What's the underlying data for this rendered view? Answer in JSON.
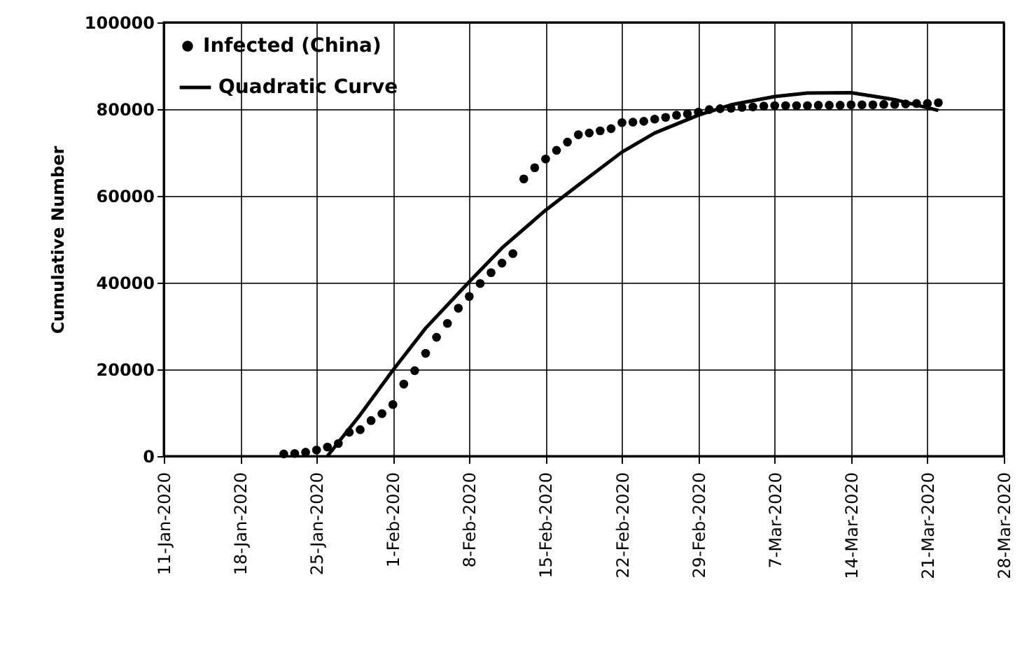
{
  "chart_data": {
    "type": "scatter",
    "ylabel": "Cumulative Number",
    "xlim": [
      "2020-01-11",
      "2020-03-28"
    ],
    "xticks": [
      {
        "value": "2020-01-11",
        "label": "11-Jan-2020"
      },
      {
        "value": "2020-01-18",
        "label": "18-Jan-2020"
      },
      {
        "value": "2020-01-25",
        "label": "25-Jan-2020"
      },
      {
        "value": "2020-02-01",
        "label": "1-Feb-2020"
      },
      {
        "value": "2020-02-08",
        "label": "8-Feb-2020"
      },
      {
        "value": "2020-02-15",
        "label": "15-Feb-2020"
      },
      {
        "value": "2020-02-22",
        "label": "22-Feb-2020"
      },
      {
        "value": "2020-02-29",
        "label": "29-Feb-2020"
      },
      {
        "value": "2020-03-07",
        "label": "7-Mar-2020"
      },
      {
        "value": "2020-03-14",
        "label": "14-Mar-2020"
      },
      {
        "value": "2020-03-21",
        "label": "21-Mar-2020"
      },
      {
        "value": "2020-03-28",
        "label": "28-Mar-2020"
      }
    ],
    "ylim": [
      0,
      100000
    ],
    "yticks": [
      0,
      20000,
      40000,
      60000,
      80000,
      100000
    ],
    "grid": true,
    "legend": "top left",
    "series": [
      {
        "name": "Infected (China)",
        "marker": "circle",
        "color": "#000000",
        "x": [
          "2020-01-22",
          "2020-01-23",
          "2020-01-24",
          "2020-01-25",
          "2020-01-26",
          "2020-01-27",
          "2020-01-28",
          "2020-01-29",
          "2020-01-30",
          "2020-01-31",
          "2020-02-01",
          "2020-02-02",
          "2020-02-03",
          "2020-02-04",
          "2020-02-05",
          "2020-02-06",
          "2020-02-07",
          "2020-02-08",
          "2020-02-09",
          "2020-02-10",
          "2020-02-11",
          "2020-02-12",
          "2020-02-13",
          "2020-02-14",
          "2020-02-15",
          "2020-02-16",
          "2020-02-17",
          "2020-02-18",
          "2020-02-19",
          "2020-02-20",
          "2020-02-21",
          "2020-02-22",
          "2020-02-23",
          "2020-02-24",
          "2020-02-25",
          "2020-02-26",
          "2020-02-27",
          "2020-02-28",
          "2020-02-29",
          "2020-03-01",
          "2020-03-02",
          "2020-03-03",
          "2020-03-04",
          "2020-03-05",
          "2020-03-06",
          "2020-03-07",
          "2020-03-08",
          "2020-03-09",
          "2020-03-10",
          "2020-03-11",
          "2020-03-12",
          "2020-03-13",
          "2020-03-14",
          "2020-03-15",
          "2020-03-16",
          "2020-03-17",
          "2020-03-18",
          "2020-03-19",
          "2020-03-20",
          "2020-03-21",
          "2020-03-22"
        ],
        "values": [
          500,
          600,
          900,
          1400,
          2100,
          2900,
          5500,
          6100,
          8200,
          9800,
          11900,
          16600,
          19700,
          23700,
          27400,
          30600,
          34100,
          36800,
          39800,
          42300,
          44500,
          46700,
          63900,
          66500,
          68500,
          70500,
          72400,
          74100,
          74500,
          75000,
          75500,
          76900,
          77000,
          77200,
          77700,
          78100,
          78600,
          78900,
          79300,
          79900,
          80100,
          80200,
          80400,
          80500,
          80700,
          80800,
          80800,
          80800,
          80800,
          80900,
          80900,
          80900,
          81000,
          81000,
          81000,
          81100,
          81100,
          81200,
          81300,
          81300,
          81500
        ]
      },
      {
        "name": "Quadratic Curve",
        "type": "line",
        "line_style": "solid",
        "color": "#000000",
        "x": [
          "2020-01-26",
          "2020-01-29",
          "2020-02-01",
          "2020-02-04",
          "2020-02-08",
          "2020-02-11",
          "2020-02-15",
          "2020-02-18",
          "2020-02-22",
          "2020-02-25",
          "2020-02-29",
          "2020-03-03",
          "2020-03-07",
          "2020-03-10",
          "2020-03-14",
          "2020-03-18",
          "2020-03-22"
        ],
        "values": [
          0,
          9500,
          19800,
          29500,
          40200,
          48000,
          56700,
          62500,
          70100,
          74500,
          78600,
          81000,
          82900,
          83700,
          83800,
          82200,
          79700
        ]
      }
    ]
  }
}
